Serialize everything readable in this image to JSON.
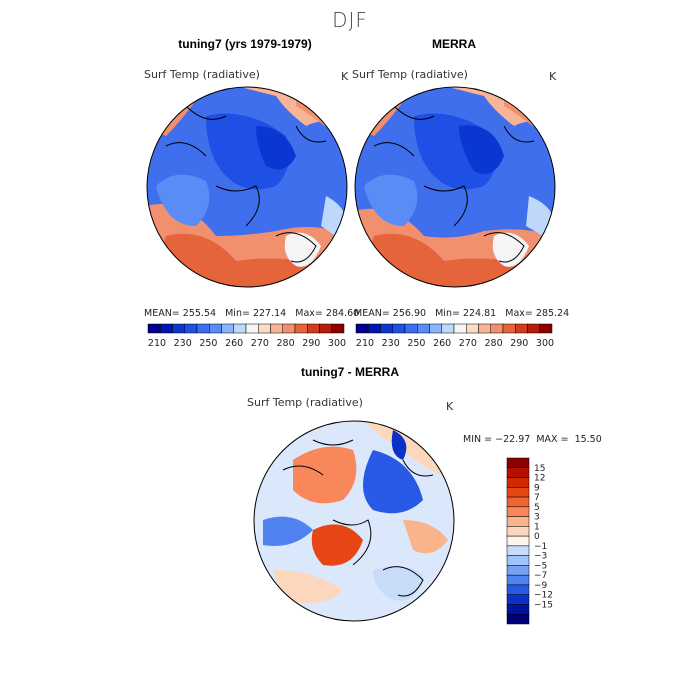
{
  "figure": {
    "season": "DJF"
  },
  "panels": [
    {
      "id": "model",
      "title": "tuning7 (yrs 1979-1979)",
      "variable": "Surf Temp (radiative)",
      "units": "K",
      "mean_label": "MEAN=",
      "mean": "255.54",
      "min_label": "Min=",
      "min": "227.14",
      "max_label": "Max=",
      "max": "284.60"
    },
    {
      "id": "obs",
      "title": "MERRA",
      "variable": "Surf Temp (radiative)",
      "units": "K",
      "mean_label": "MEAN=",
      "mean": "256.90",
      "min_label": "Min=",
      "min": "224.81",
      "max_label": "Max=",
      "max": "285.24"
    },
    {
      "id": "diff",
      "title": "tuning7 - MERRA",
      "variable": "Surf Temp (radiative)",
      "units": "K",
      "min_label": "MIN =",
      "min": "−22.97",
      "max_label": "MAX =",
      "max": "15.50"
    }
  ],
  "colorbar_abs": {
    "tick_labels": [
      "210",
      "230",
      "250",
      "260",
      "270",
      "280",
      "290",
      "300"
    ],
    "colors": [
      "#00008c",
      "#0015b0",
      "#0a37d2",
      "#1e50e6",
      "#3c6ef0",
      "#5a8cf5",
      "#8cb4fa",
      "#bed7fa",
      "#f5f5f5",
      "#fadcc8",
      "#f8b496",
      "#f0906e",
      "#e6643c",
      "#d23c1e",
      "#b41e0a",
      "#8c0000"
    ]
  },
  "colorbar_diff": {
    "tick_labels": [
      "15",
      "12",
      "9",
      "7",
      "5",
      "3",
      "1",
      "0",
      "−1",
      "−3",
      "−5",
      "−7",
      "−9",
      "−12",
      "−15"
    ],
    "colors": [
      "#8c0000",
      "#b40f00",
      "#d22800",
      "#e64614",
      "#f06432",
      "#f8875a",
      "#fab48c",
      "#fcd7be",
      "#fff5eb",
      "#c8dcfa",
      "#a0c3fa",
      "#78a0f5",
      "#5082f0",
      "#285ae6",
      "#0a32c8",
      "#0014a0",
      "#000078"
    ]
  },
  "colors": {
    "land_ice_blue": "#2f5ee6",
    "warm_orange": "#f08c64",
    "coast": "#000000"
  }
}
